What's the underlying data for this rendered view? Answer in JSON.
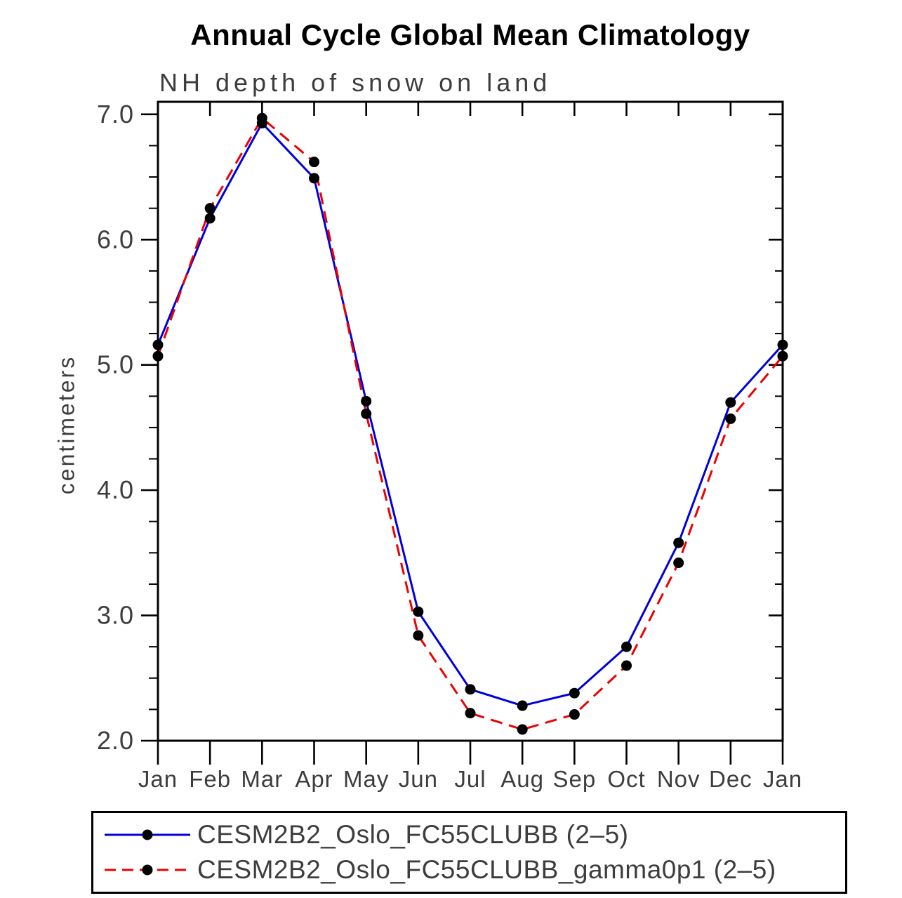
{
  "page": {
    "background": "#ffffff"
  },
  "chart_data": {
    "type": "line",
    "title": "Annual Cycle Global Mean Climatology",
    "subtitle": "NH depth of snow on land",
    "ylabel": "centimeters",
    "categories": [
      "Jan",
      "Feb",
      "Mar",
      "Apr",
      "May",
      "Jun",
      "Jul",
      "Aug",
      "Sep",
      "Oct",
      "Nov",
      "Dec",
      "Jan"
    ],
    "ylim": [
      2.0,
      7.1
    ],
    "yticks": [
      2.0,
      3.0,
      4.0,
      5.0,
      6.0,
      7.0
    ],
    "ytick_labels": [
      "2.0",
      "3.0",
      "4.0",
      "5.0",
      "6.0",
      "7.0"
    ],
    "grid": false,
    "legend_position": "bottom",
    "axis_color": "#000000",
    "marker_color": "#000000",
    "series": [
      {
        "name": "CESM2B2_Oslo_FC55CLUBB (2–5)",
        "color": "#0000dd",
        "style": "solid",
        "marker": "filled-circle",
        "values": [
          5.16,
          6.17,
          6.93,
          6.49,
          4.71,
          3.03,
          2.41,
          2.28,
          2.38,
          2.75,
          3.58,
          4.7,
          5.16
        ]
      },
      {
        "name": "CESM2B2_Oslo_FC55CLUBB_gamma0p1 (2–5)",
        "color": "#ee0000",
        "style": "dashed",
        "marker": "filled-circle",
        "values": [
          5.07,
          6.25,
          6.97,
          6.62,
          4.61,
          2.84,
          2.22,
          2.09,
          2.21,
          2.6,
          3.42,
          4.57,
          5.07
        ]
      }
    ]
  }
}
